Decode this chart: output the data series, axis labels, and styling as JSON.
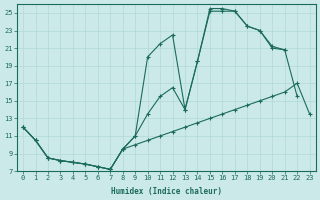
{
  "xlabel": "Humidex (Indice chaleur)",
  "xlim": [
    -0.5,
    23.5
  ],
  "ylim": [
    7,
    26
  ],
  "xticks": [
    0,
    1,
    2,
    3,
    4,
    5,
    6,
    7,
    8,
    9,
    10,
    11,
    12,
    13,
    14,
    15,
    16,
    17,
    18,
    19,
    20,
    21,
    22,
    23
  ],
  "yticks": [
    7,
    9,
    11,
    13,
    15,
    17,
    19,
    21,
    23,
    25
  ],
  "line_color": "#1a6b5a",
  "bg_color": "#cce9e9",
  "grid_color": "#b0d8d8",
  "line1_x": [
    0,
    1,
    2,
    3,
    4,
    5,
    6,
    7,
    8,
    9,
    10,
    11,
    12,
    13,
    14,
    15,
    16,
    17,
    18,
    19,
    20,
    21,
    22,
    23
  ],
  "line1_y": [
    12,
    10.5,
    8.5,
    8.2,
    8.0,
    7.8,
    7.5,
    7.2,
    9.5,
    10.0,
    10.5,
    11.0,
    11.5,
    12.0,
    12.5,
    13.0,
    13.5,
    14.0,
    14.5,
    15.0,
    15.5,
    16.0,
    17.0,
    13.5
  ],
  "line2_x": [
    0,
    1,
    2,
    3,
    4,
    5,
    6,
    7,
    8,
    9,
    10,
    11,
    12,
    13,
    14,
    15,
    16,
    17,
    18,
    19,
    20,
    21,
    22
  ],
  "line2_y": [
    12,
    10.5,
    8.5,
    8.2,
    8.0,
    7.8,
    7.5,
    7.2,
    9.5,
    11.0,
    13.5,
    15.5,
    16.5,
    14.0,
    19.5,
    25.2,
    25.2,
    25.2,
    23.5,
    23.0,
    21.0,
    20.8,
    15.5
  ],
  "line3_x": [
    0,
    1,
    2,
    3,
    4,
    5,
    6,
    7,
    8,
    9,
    10,
    11,
    12,
    13,
    14,
    15,
    16,
    17,
    18,
    19,
    20,
    21
  ],
  "line3_y": [
    12,
    10.5,
    8.5,
    8.2,
    8.0,
    7.8,
    7.5,
    7.2,
    9.5,
    11.0,
    20.0,
    21.5,
    22.5,
    14.0,
    19.5,
    25.5,
    25.5,
    25.2,
    23.5,
    23.0,
    21.2,
    20.8
  ]
}
